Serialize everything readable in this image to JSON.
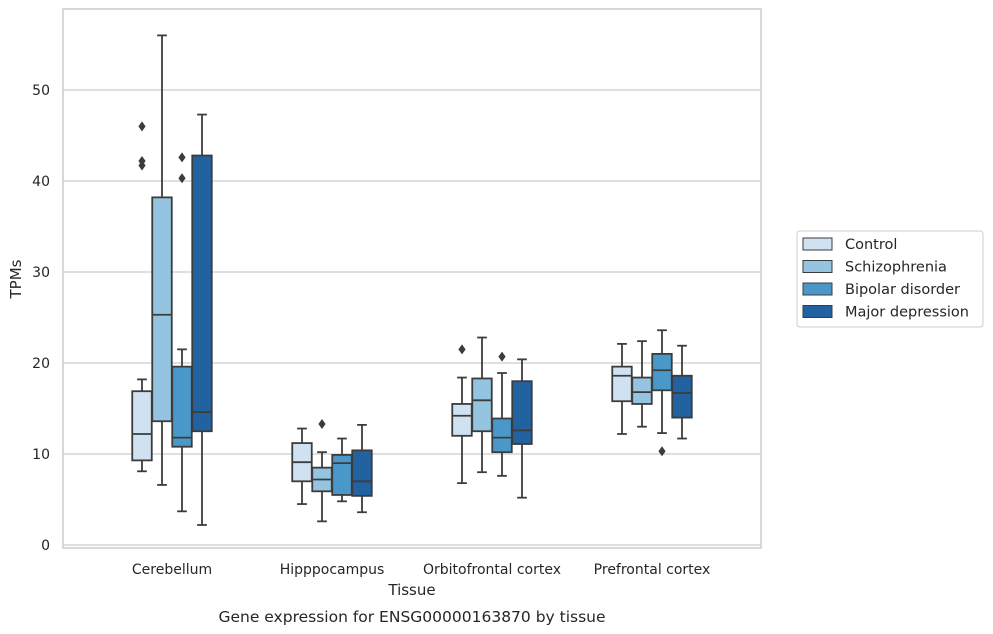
{
  "chart_data": {
    "type": "box",
    "caption": "Gene expression for ENSG00000163870 by tissue",
    "xlabel": "Tissue",
    "ylabel": "TPMs",
    "ylim": [
      -0.5,
      59
    ],
    "yticks": [
      0,
      10,
      20,
      30,
      40,
      50
    ],
    "grid": "horizontal",
    "legend_position": "right",
    "categories": [
      "Cerebellum",
      "Hipppocampus",
      "Orbitofrontal cortex",
      "Prefrontal cortex"
    ],
    "series": [
      {
        "name": "Control",
        "color": "#d0e1f2",
        "boxes": [
          {
            "whisker_low": 8.1,
            "q1": 9.3,
            "median": 12.2,
            "q3": 16.9,
            "whisker_high": 18.2,
            "outliers": [
              41.7,
              42.2,
              46.0
            ]
          },
          {
            "whisker_low": 4.5,
            "q1": 7.0,
            "median": 9.1,
            "q3": 11.2,
            "whisker_high": 12.8,
            "outliers": []
          },
          {
            "whisker_low": 6.8,
            "q1": 12.0,
            "median": 14.2,
            "q3": 15.5,
            "whisker_high": 18.4,
            "outliers": [
              21.5
            ]
          },
          {
            "whisker_low": 12.2,
            "q1": 15.8,
            "median": 18.6,
            "q3": 19.6,
            "whisker_high": 22.1,
            "outliers": []
          }
        ]
      },
      {
        "name": "Schizophrenia",
        "color": "#94c4df",
        "boxes": [
          {
            "whisker_low": 6.6,
            "q1": 13.6,
            "median": 25.3,
            "q3": 38.2,
            "whisker_high": 56.0,
            "outliers": []
          },
          {
            "whisker_low": 2.6,
            "q1": 5.9,
            "median": 7.2,
            "q3": 8.5,
            "whisker_high": 10.2,
            "outliers": [
              13.3
            ]
          },
          {
            "whisker_low": 8.0,
            "q1": 12.5,
            "median": 15.9,
            "q3": 18.3,
            "whisker_high": 22.8,
            "outliers": []
          },
          {
            "whisker_low": 13.0,
            "q1": 15.5,
            "median": 16.8,
            "q3": 18.4,
            "whisker_high": 22.4,
            "outliers": []
          }
        ]
      },
      {
        "name": "Bipolar disorder",
        "color": "#4a98c9",
        "boxes": [
          {
            "whisker_low": 3.7,
            "q1": 10.8,
            "median": 11.8,
            "q3": 19.6,
            "whisker_high": 21.5,
            "outliers": [
              40.3,
              42.6
            ]
          },
          {
            "whisker_low": 4.8,
            "q1": 5.5,
            "median": 9.0,
            "q3": 9.9,
            "whisker_high": 11.7,
            "outliers": []
          },
          {
            "whisker_low": 7.6,
            "q1": 10.2,
            "median": 11.8,
            "q3": 13.9,
            "whisker_high": 18.9,
            "outliers": [
              20.7
            ]
          },
          {
            "whisker_low": 12.3,
            "q1": 17.0,
            "median": 19.2,
            "q3": 21.0,
            "whisker_high": 23.6,
            "outliers": [
              10.3
            ]
          }
        ]
      },
      {
        "name": "Major depression",
        "color": "#2362a0",
        "boxes": [
          {
            "whisker_low": 2.2,
            "q1": 12.5,
            "median": 14.6,
            "q3": 42.8,
            "whisker_high": 47.3,
            "outliers": []
          },
          {
            "whisker_low": 3.6,
            "q1": 5.4,
            "median": 7.0,
            "q3": 10.4,
            "whisker_high": 13.2,
            "outliers": []
          },
          {
            "whisker_low": 5.2,
            "q1": 11.1,
            "median": 12.6,
            "q3": 18.0,
            "whisker_high": 20.4,
            "outliers": []
          },
          {
            "whisker_low": 11.7,
            "q1": 14.0,
            "median": 16.7,
            "q3": 18.6,
            "whisker_high": 21.9,
            "outliers": []
          }
        ]
      }
    ]
  }
}
